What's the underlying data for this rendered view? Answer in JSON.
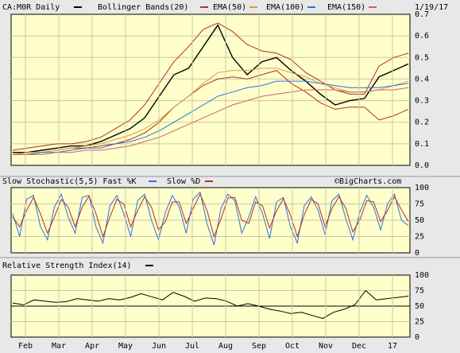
{
  "header": {
    "symbol": "CA:M0R Daily",
    "bollinger": "Bollinger Bands(20)",
    "ema50": "EMA(50)",
    "ema100": "EMA(100)",
    "ema150": "EMA(150)",
    "date": "1/19/17"
  },
  "stoch_header": "Slow Stochastic(5,5) Fast %K",
  "stoch_slow": "Slow %D",
  "watermark": "©BigCharts.com",
  "rsi_header": "Relative Strength Index(14)",
  "colors": {
    "background": "#e8e8e8",
    "plot": "#ffffcc",
    "price": "#000000",
    "bollinger": "#b03020",
    "ema50": "#d8a040",
    "ema100": "#2f6fe0",
    "ema150": "#d06060",
    "stoch_fast": "#2f6fe0",
    "stoch_slow": "#b03020",
    "rsi": "#000000"
  },
  "chart_data": [
    {
      "type": "line",
      "name": "price",
      "x_labels": [
        "Feb",
        "Mar",
        "Apr",
        "May",
        "Jun",
        "Jul",
        "Aug",
        "Sep",
        "Oct",
        "Nov",
        "Dec",
        "17"
      ],
      "ylim": [
        0,
        0.7
      ],
      "y_ticks": [
        "0.0",
        "0.1",
        "0.2",
        "0.3",
        "0.4",
        "0.5",
        "0.6",
        "0.7"
      ],
      "grid": true,
      "legend": "top",
      "series": [
        {
          "name": "CA:M0R Daily",
          "values": [
            0.06,
            0.06,
            0.07,
            0.08,
            0.09,
            0.09,
            0.11,
            0.14,
            0.17,
            0.22,
            0.32,
            0.42,
            0.45,
            0.55,
            0.65,
            0.5,
            0.42,
            0.48,
            0.5,
            0.44,
            0.39,
            0.33,
            0.28,
            0.3,
            0.31,
            0.41,
            0.44,
            0.47
          ]
        },
        {
          "name": "Bollinger Bands(20) upper",
          "values": [
            0.07,
            0.08,
            0.09,
            0.1,
            0.1,
            0.11,
            0.13,
            0.17,
            0.21,
            0.28,
            0.38,
            0.48,
            0.55,
            0.63,
            0.66,
            0.62,
            0.56,
            0.53,
            0.52,
            0.49,
            0.43,
            0.39,
            0.35,
            0.33,
            0.33,
            0.46,
            0.5,
            0.52
          ]
        },
        {
          "name": "Bollinger Bands(20) lower",
          "values": [
            0.05,
            0.05,
            0.06,
            0.07,
            0.08,
            0.08,
            0.09,
            0.1,
            0.12,
            0.15,
            0.2,
            0.27,
            0.32,
            0.37,
            0.4,
            0.41,
            0.4,
            0.42,
            0.44,
            0.38,
            0.34,
            0.29,
            0.26,
            0.27,
            0.27,
            0.21,
            0.23,
            0.26
          ]
        },
        {
          "name": "EMA(50)",
          "values": [
            0.05,
            0.06,
            0.06,
            0.07,
            0.08,
            0.09,
            0.1,
            0.12,
            0.14,
            0.17,
            0.21,
            0.27,
            0.32,
            0.38,
            0.43,
            0.44,
            0.44,
            0.45,
            0.45,
            0.43,
            0.41,
            0.38,
            0.36,
            0.34,
            0.34,
            0.35,
            0.37,
            0.39
          ]
        },
        {
          "name": "EMA(100)",
          "values": [
            0.05,
            0.05,
            0.06,
            0.06,
            0.07,
            0.08,
            0.08,
            0.1,
            0.11,
            0.13,
            0.16,
            0.2,
            0.24,
            0.28,
            0.32,
            0.34,
            0.36,
            0.37,
            0.39,
            0.39,
            0.39,
            0.38,
            0.37,
            0.36,
            0.36,
            0.36,
            0.37,
            0.38
          ]
        },
        {
          "name": "EMA(150)",
          "values": [
            0.05,
            0.05,
            0.05,
            0.06,
            0.06,
            0.07,
            0.07,
            0.08,
            0.09,
            0.11,
            0.13,
            0.16,
            0.19,
            0.22,
            0.25,
            0.28,
            0.3,
            0.32,
            0.33,
            0.34,
            0.35,
            0.35,
            0.35,
            0.34,
            0.34,
            0.35,
            0.35,
            0.36
          ]
        }
      ]
    },
    {
      "type": "line",
      "name": "stochastic",
      "ylim": [
        0,
        100
      ],
      "y_ticks": [
        "0",
        "25",
        "50",
        "75",
        "100"
      ],
      "series": [
        {
          "name": "Fast %K",
          "values": [
            60,
            25,
            82,
            88,
            40,
            20,
            70,
            90,
            55,
            30,
            85,
            88,
            40,
            15,
            72,
            88,
            60,
            25,
            80,
            90,
            50,
            20,
            62,
            88,
            70,
            30,
            82,
            93,
            45,
            12,
            68,
            90,
            80,
            30,
            55,
            86,
            60,
            22,
            78,
            85,
            40,
            15,
            72,
            86,
            65,
            28,
            80,
            90,
            52,
            20,
            62,
            88,
            70,
            35,
            75,
            90,
            50,
            42
          ]
        },
        {
          "name": "Slow %D",
          "values": [
            55,
            40,
            65,
            85,
            60,
            30,
            55,
            82,
            70,
            40,
            70,
            87,
            60,
            25,
            55,
            82,
            75,
            40,
            65,
            86,
            70,
            35,
            48,
            78,
            78,
            45,
            68,
            90,
            65,
            25,
            52,
            84,
            85,
            50,
            45,
            78,
            72,
            38,
            64,
            83,
            58,
            25,
            58,
            82,
            75,
            40,
            68,
            86,
            68,
            32,
            50,
            80,
            78,
            48,
            65,
            86,
            66,
            48
          ]
        }
      ]
    },
    {
      "type": "line",
      "name": "rsi",
      "ylim": [
        0,
        100
      ],
      "y_ticks": [
        "0",
        "25",
        "50",
        "75",
        "100"
      ],
      "series": [
        {
          "name": "Relative Strength Index(14)",
          "values": [
            55,
            52,
            60,
            58,
            56,
            57,
            62,
            60,
            58,
            62,
            60,
            64,
            70,
            65,
            60,
            72,
            66,
            58,
            63,
            62,
            58,
            50,
            54,
            50,
            45,
            42,
            38,
            40,
            35,
            30,
            40,
            45,
            52,
            75,
            60,
            62,
            64,
            66
          ]
        }
      ]
    }
  ]
}
